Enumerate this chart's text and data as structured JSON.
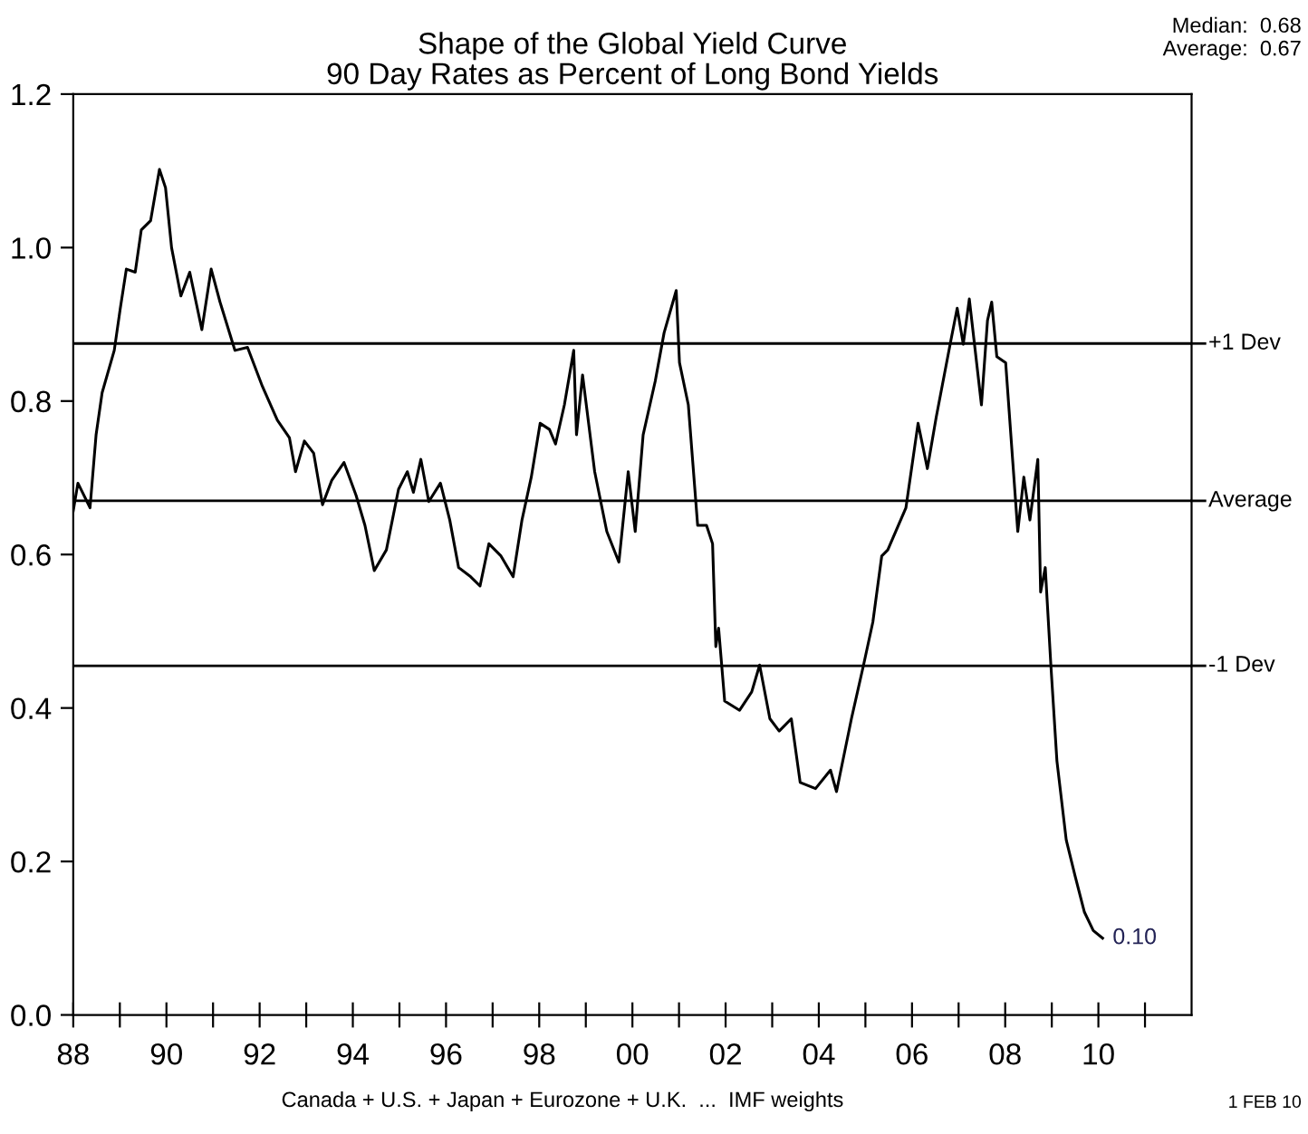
{
  "chart_data": {
    "type": "line",
    "title": "Shape of the Global Yield Curve\n90 Day Rates as Percent of Long Bond Yields",
    "x": [
      1988.0,
      1988.1,
      1988.36,
      1988.49,
      1988.62,
      1988.88,
      1989.01,
      1989.14,
      1989.33,
      1989.46,
      1989.66,
      1989.85,
      1989.98,
      1990.11,
      1990.31,
      1990.5,
      1990.76,
      1990.96,
      1991.15,
      1991.47,
      1991.74,
      1992.06,
      1992.38,
      1992.64,
      1992.77,
      1992.96,
      1993.16,
      1993.35,
      1993.55,
      1993.81,
      1994.07,
      1994.26,
      1994.46,
      1994.72,
      1994.98,
      1995.17,
      1995.3,
      1995.46,
      1995.63,
      1995.88,
      1996.08,
      1996.27,
      1996.53,
      1996.73,
      1996.92,
      1997.18,
      1997.44,
      1997.63,
      1997.83,
      1998.02,
      1998.22,
      1998.35,
      1998.54,
      1998.74,
      1998.8,
      1998.93,
      1999.19,
      1999.45,
      1999.71,
      1999.91,
      2000.06,
      2000.23,
      2000.49,
      2000.68,
      2000.94,
      2001.01,
      2001.2,
      2001.4,
      2001.59,
      2001.72,
      2001.79,
      2001.85,
      2001.98,
      2002.3,
      2002.56,
      2002.73,
      2002.95,
      2003.15,
      2003.41,
      2003.6,
      2003.93,
      2004.25,
      2004.38,
      2004.7,
      2004.96,
      2005.16,
      2005.35,
      2005.48,
      2005.87,
      2006.13,
      2006.33,
      2006.52,
      2006.84,
      2006.97,
      2007.1,
      2007.23,
      2007.49,
      2007.62,
      2007.71,
      2007.82,
      2008.01,
      2008.14,
      2008.27,
      2008.4,
      2008.53,
      2008.7,
      2008.76,
      2008.86,
      2008.98,
      2009.11,
      2009.31,
      2009.5,
      2009.7,
      2009.89,
      2010.09
    ],
    "series": [
      {
        "color": "#000000",
        "values": [
          0.657,
          0.693,
          0.661,
          0.756,
          0.811,
          0.866,
          0.921,
          0.972,
          0.968,
          1.023,
          1.035,
          1.102,
          1.078,
          1.0,
          0.937,
          0.968,
          0.893,
          0.972,
          0.929,
          0.866,
          0.87,
          0.819,
          0.775,
          0.752,
          0.708,
          0.748,
          0.732,
          0.665,
          0.697,
          0.72,
          0.677,
          0.638,
          0.579,
          0.606,
          0.685,
          0.708,
          0.681,
          0.724,
          0.669,
          0.693,
          0.645,
          0.583,
          0.571,
          0.559,
          0.614,
          0.598,
          0.571,
          0.645,
          0.701,
          0.771,
          0.763,
          0.744,
          0.795,
          0.866,
          0.756,
          0.834,
          0.708,
          0.63,
          0.59,
          0.708,
          0.63,
          0.756,
          0.826,
          0.889,
          0.944,
          0.85,
          0.795,
          0.638,
          0.638,
          0.614,
          0.48,
          0.504,
          0.409,
          0.397,
          0.421,
          0.456,
          0.386,
          0.37,
          0.386,
          0.303,
          0.295,
          0.319,
          0.291,
          0.386,
          0.456,
          0.512,
          0.598,
          0.606,
          0.661,
          0.771,
          0.712,
          0.779,
          0.881,
          0.921,
          0.874,
          0.933,
          0.795,
          0.905,
          0.929,
          0.858,
          0.85,
          0.74,
          0.63,
          0.701,
          0.645,
          0.724,
          0.551,
          0.583,
          0.456,
          0.331,
          0.228,
          0.181,
          0.134,
          0.11,
          0.1
        ]
      }
    ],
    "xlim": [
      1988,
      2012
    ],
    "xticks": [
      {
        "value": 1988,
        "label": "88"
      },
      {
        "value": 1989,
        "label": null
      },
      {
        "value": 1990,
        "label": "90"
      },
      {
        "value": 1991,
        "label": null
      },
      {
        "value": 1992,
        "label": "92"
      },
      {
        "value": 1993,
        "label": null
      },
      {
        "value": 1994,
        "label": "94"
      },
      {
        "value": 1995,
        "label": null
      },
      {
        "value": 1996,
        "label": "96"
      },
      {
        "value": 1997,
        "label": null
      },
      {
        "value": 1998,
        "label": "98"
      },
      {
        "value": 1999,
        "label": null
      },
      {
        "value": 2000,
        "label": "00"
      },
      {
        "value": 2001,
        "label": null
      },
      {
        "value": 2002,
        "label": "02"
      },
      {
        "value": 2003,
        "label": null
      },
      {
        "value": 2004,
        "label": "04"
      },
      {
        "value": 2005,
        "label": null
      },
      {
        "value": 2006,
        "label": "06"
      },
      {
        "value": 2007,
        "label": null
      },
      {
        "value": 2008,
        "label": "08"
      },
      {
        "value": 2009,
        "label": null
      },
      {
        "value": 2010,
        "label": "10"
      },
      {
        "value": 2011,
        "label": null
      }
    ],
    "ylim": [
      0,
      1.2
    ],
    "yticks": [
      {
        "value": 0,
        "label": "0.0"
      },
      0.2,
      0.4,
      0.6,
      0.8,
      {
        "value": 1,
        "label": "1.0"
      },
      1.2
    ],
    "ref_lines": [
      {
        "axis": "y",
        "value": 0.875,
        "label": "+1 Dev",
        "color": "#000000"
      },
      {
        "axis": "y",
        "value": 0.67,
        "label": "Average",
        "color": "#000000"
      },
      {
        "axis": "y",
        "value": 0.455,
        "label": "-1 Dev",
        "color": "#000000"
      }
    ],
    "annotations": [
      {
        "text": "0.10",
        "x": 2010.09,
        "y": 0.1
      },
      "Median:  0.68\nAverage:  0.67",
      "Canada + U.S. + Japan + Eurozone + U.K.  ...  IMF weights",
      "1 FEB 10"
    ],
    "grid": false,
    "legend": false,
    "marker": "none",
    "line_style": "solid"
  }
}
